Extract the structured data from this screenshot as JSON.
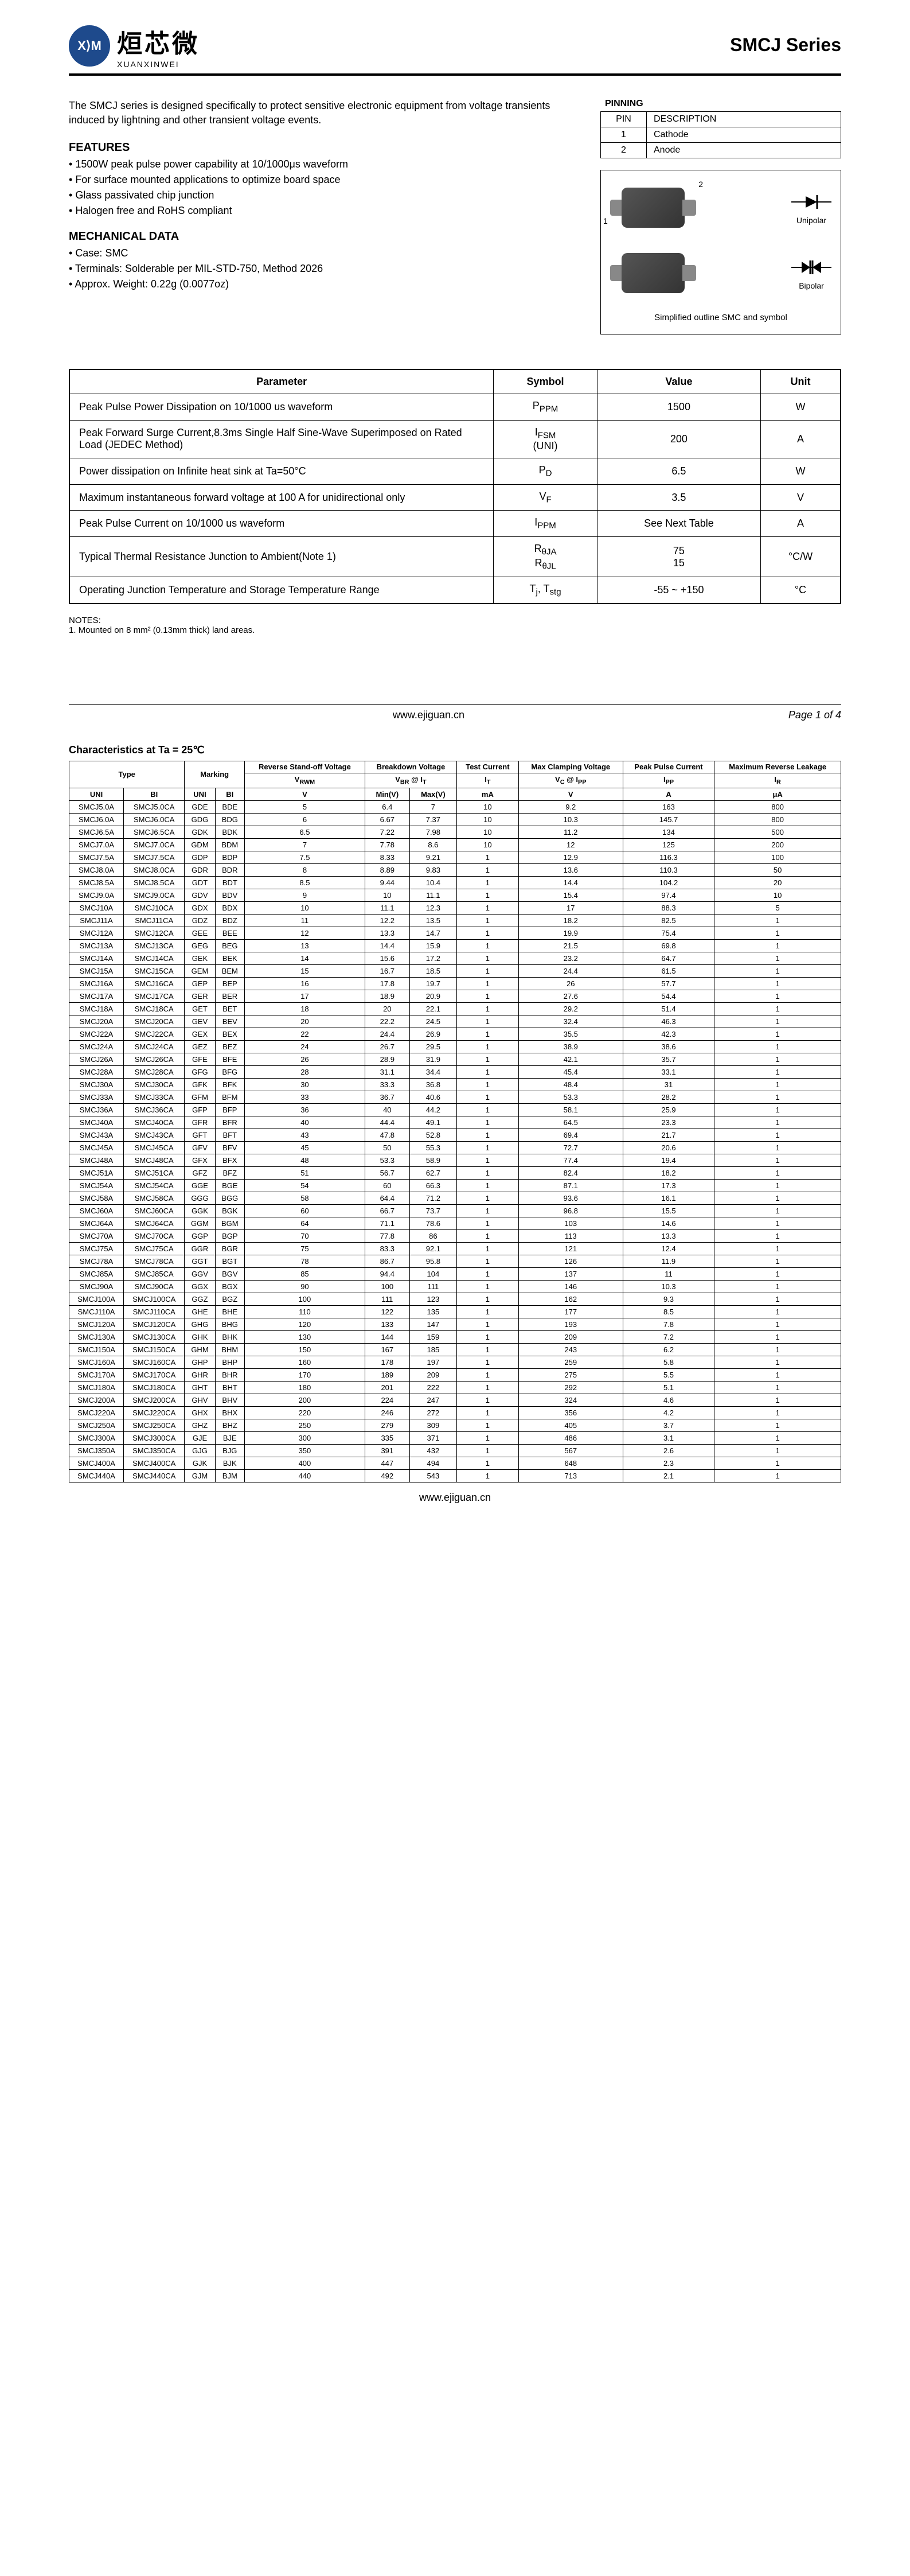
{
  "header": {
    "logo_mark": "X⟩M",
    "logo_cn": "烜芯微",
    "logo_en": "XUANXINWEI",
    "series": "SMCJ Series"
  },
  "intro": "The SMCJ series is designed specifically to protect sensitive electronic equipment from voltage transients induced by lightning and other transient voltage events.",
  "features_label": "FEATURES",
  "features": [
    "1500W peak pulse power capability at 10/1000μs waveform",
    "For surface mounted applications to optimize board space",
    "Glass passivated chip junction",
    "Halogen free and RoHS compliant"
  ],
  "mech_label": "MECHANICAL DATA",
  "mech": [
    "Case: SMC",
    "Terminals: Solderable per MIL-STD-750, Method 2026",
    "Approx. Weight:  0.22g (0.0077oz)"
  ],
  "pinning": {
    "label": "PINNING",
    "col1": "PIN",
    "col2": "DESCRIPTION",
    "rows": [
      [
        "1",
        "Cathode"
      ],
      [
        "2",
        "Anode"
      ]
    ]
  },
  "outline": {
    "pin1": "1",
    "pin2": "2",
    "unipolar": "Unipolar",
    "bipolar": "Bipolar",
    "caption": "Simplified outline SMC and symbol"
  },
  "param_headers": [
    "Parameter",
    "Symbol",
    "Value",
    "Unit"
  ],
  "params": [
    {
      "p": "Peak Pulse Power Dissipation on 10/1000 us waveform",
      "s": "P<sub>PPM</sub>",
      "v": "1500",
      "u": "W"
    },
    {
      "p": "Peak Forward Surge Current,8.3ms Single Half Sine-Wave Superimposed on Rated Load (JEDEC Method)",
      "s": "I<sub>FSM</sub><br>(UNI)",
      "v": "200",
      "u": "A"
    },
    {
      "p": "Power dissipation on Infinite heat sink at Ta=50°C",
      "s": "P<sub>D</sub>",
      "v": "6.5",
      "u": "W"
    },
    {
      "p": "Maximum instantaneous forward voltage at 100 A for unidirectional only",
      "s": "V<sub>F</sub>",
      "v": "3.5",
      "u": "V"
    },
    {
      "p": "Peak Pulse Current on 10/1000 us waveform",
      "s": "I<sub>PPM</sub>",
      "v": "See Next Table",
      "u": "A"
    },
    {
      "p": "Typical Thermal Resistance Junction to Ambient(Note 1)",
      "s": "R<sub>θJA</sub><br>R<sub>θJL</sub>",
      "v": "75<br>15",
      "u": "°C/W"
    },
    {
      "p": "Operating Junction Temperature and Storage Temperature Range",
      "s": "T<sub>j</sub>, T<sub>stg</sub>",
      "v": "-55 ~ +150",
      "u": "°C"
    }
  ],
  "notes_label": "NOTES:",
  "notes": "1. Mounted on 8 mm² (0.13mm  thick) land areas.",
  "footer": {
    "url": "www.ejiguan.cn",
    "page": "Page  1 of 4"
  },
  "char_title": "Characteristics at Ta = 25℃",
  "char_headers": {
    "type": "Type",
    "marking": "Marking",
    "rsov": "Reverse Stand-off Voltage",
    "bv": "Breakdown Voltage",
    "tc": "Test Current",
    "mcv": "Max Clamping Voltage",
    "ppc": "Peak Pulse Current",
    "mrl": "Maximum Reverse Leakage",
    "vrwm": "V<sub>RWM</sub>",
    "vbrit": "V<sub>BR</sub> @ I<sub>T</sub>",
    "it": "I<sub>T</sub>",
    "vcipp": "V<sub>C</sub> @ I<sub>PP</sub>",
    "ipp": "I<sub>PP</sub>",
    "ir": "I<sub>R</sub>",
    "uni": "UNI",
    "bi": "BI",
    "v": "V",
    "minv": "Min(V)",
    "maxv": "Max(V)",
    "ma": "mA",
    "a": "A",
    "ua": "μA"
  },
  "char_rows": [
    [
      "SMCJ5.0A",
      "SMCJ5.0CA",
      "GDE",
      "BDE",
      "5",
      "6.4",
      "7",
      "10",
      "9.2",
      "163",
      "800"
    ],
    [
      "SMCJ6.0A",
      "SMCJ6.0CA",
      "GDG",
      "BDG",
      "6",
      "6.67",
      "7.37",
      "10",
      "10.3",
      "145.7",
      "800"
    ],
    [
      "SMCJ6.5A",
      "SMCJ6.5CA",
      "GDK",
      "BDK",
      "6.5",
      "7.22",
      "7.98",
      "10",
      "11.2",
      "134",
      "500"
    ],
    [
      "SMCJ7.0A",
      "SMCJ7.0CA",
      "GDM",
      "BDM",
      "7",
      "7.78",
      "8.6",
      "10",
      "12",
      "125",
      "200"
    ],
    [
      "SMCJ7.5A",
      "SMCJ7.5CA",
      "GDP",
      "BDP",
      "7.5",
      "8.33",
      "9.21",
      "1",
      "12.9",
      "116.3",
      "100"
    ],
    [
      "SMCJ8.0A",
      "SMCJ8.0CA",
      "GDR",
      "BDR",
      "8",
      "8.89",
      "9.83",
      "1",
      "13.6",
      "110.3",
      "50"
    ],
    [
      "SMCJ8.5A",
      "SMCJ8.5CA",
      "GDT",
      "BDT",
      "8.5",
      "9.44",
      "10.4",
      "1",
      "14.4",
      "104.2",
      "20"
    ],
    [
      "SMCJ9.0A",
      "SMCJ9.0CA",
      "GDV",
      "BDV",
      "9",
      "10",
      "11.1",
      "1",
      "15.4",
      "97.4",
      "10"
    ],
    [
      "SMCJ10A",
      "SMCJ10CA",
      "GDX",
      "BDX",
      "10",
      "11.1",
      "12.3",
      "1",
      "17",
      "88.3",
      "5"
    ],
    [
      "SMCJ11A",
      "SMCJ11CA",
      "GDZ",
      "BDZ",
      "11",
      "12.2",
      "13.5",
      "1",
      "18.2",
      "82.5",
      "1"
    ],
    [
      "SMCJ12A",
      "SMCJ12CA",
      "GEE",
      "BEE",
      "12",
      "13.3",
      "14.7",
      "1",
      "19.9",
      "75.4",
      "1"
    ],
    [
      "SMCJ13A",
      "SMCJ13CA",
      "GEG",
      "BEG",
      "13",
      "14.4",
      "15.9",
      "1",
      "21.5",
      "69.8",
      "1"
    ],
    [
      "SMCJ14A",
      "SMCJ14CA",
      "GEK",
      "BEK",
      "14",
      "15.6",
      "17.2",
      "1",
      "23.2",
      "64.7",
      "1"
    ],
    [
      "SMCJ15A",
      "SMCJ15CA",
      "GEM",
      "BEM",
      "15",
      "16.7",
      "18.5",
      "1",
      "24.4",
      "61.5",
      "1"
    ],
    [
      "SMCJ16A",
      "SMCJ16CA",
      "GEP",
      "BEP",
      "16",
      "17.8",
      "19.7",
      "1",
      "26",
      "57.7",
      "1"
    ],
    [
      "SMCJ17A",
      "SMCJ17CA",
      "GER",
      "BER",
      "17",
      "18.9",
      "20.9",
      "1",
      "27.6",
      "54.4",
      "1"
    ],
    [
      "SMCJ18A",
      "SMCJ18CA",
      "GET",
      "BET",
      "18",
      "20",
      "22.1",
      "1",
      "29.2",
      "51.4",
      "1"
    ],
    [
      "SMCJ20A",
      "SMCJ20CA",
      "GEV",
      "BEV",
      "20",
      "22.2",
      "24.5",
      "1",
      "32.4",
      "46.3",
      "1"
    ],
    [
      "SMCJ22A",
      "SMCJ22CA",
      "GEX",
      "BEX",
      "22",
      "24.4",
      "26.9",
      "1",
      "35.5",
      "42.3",
      "1"
    ],
    [
      "SMCJ24A",
      "SMCJ24CA",
      "GEZ",
      "BEZ",
      "24",
      "26.7",
      "29.5",
      "1",
      "38.9",
      "38.6",
      "1"
    ],
    [
      "SMCJ26A",
      "SMCJ26CA",
      "GFE",
      "BFE",
      "26",
      "28.9",
      "31.9",
      "1",
      "42.1",
      "35.7",
      "1"
    ],
    [
      "SMCJ28A",
      "SMCJ28CA",
      "GFG",
      "BFG",
      "28",
      "31.1",
      "34.4",
      "1",
      "45.4",
      "33.1",
      "1"
    ],
    [
      "SMCJ30A",
      "SMCJ30CA",
      "GFK",
      "BFK",
      "30",
      "33.3",
      "36.8",
      "1",
      "48.4",
      "31",
      "1"
    ],
    [
      "SMCJ33A",
      "SMCJ33CA",
      "GFM",
      "BFM",
      "33",
      "36.7",
      "40.6",
      "1",
      "53.3",
      "28.2",
      "1"
    ],
    [
      "SMCJ36A",
      "SMCJ36CA",
      "GFP",
      "BFP",
      "36",
      "40",
      "44.2",
      "1",
      "58.1",
      "25.9",
      "1"
    ],
    [
      "SMCJ40A",
      "SMCJ40CA",
      "GFR",
      "BFR",
      "40",
      "44.4",
      "49.1",
      "1",
      "64.5",
      "23.3",
      "1"
    ],
    [
      "SMCJ43A",
      "SMCJ43CA",
      "GFT",
      "BFT",
      "43",
      "47.8",
      "52.8",
      "1",
      "69.4",
      "21.7",
      "1"
    ],
    [
      "SMCJ45A",
      "SMCJ45CA",
      "GFV",
      "BFV",
      "45",
      "50",
      "55.3",
      "1",
      "72.7",
      "20.6",
      "1"
    ],
    [
      "SMCJ48A",
      "SMCJ48CA",
      "GFX",
      "BFX",
      "48",
      "53.3",
      "58.9",
      "1",
      "77.4",
      "19.4",
      "1"
    ],
    [
      "SMCJ51A",
      "SMCJ51CA",
      "GFZ",
      "BFZ",
      "51",
      "56.7",
      "62.7",
      "1",
      "82.4",
      "18.2",
      "1"
    ],
    [
      "SMCJ54A",
      "SMCJ54CA",
      "GGE",
      "BGE",
      "54",
      "60",
      "66.3",
      "1",
      "87.1",
      "17.3",
      "1"
    ],
    [
      "SMCJ58A",
      "SMCJ58CA",
      "GGG",
      "BGG",
      "58",
      "64.4",
      "71.2",
      "1",
      "93.6",
      "16.1",
      "1"
    ],
    [
      "SMCJ60A",
      "SMCJ60CA",
      "GGK",
      "BGK",
      "60",
      "66.7",
      "73.7",
      "1",
      "96.8",
      "15.5",
      "1"
    ],
    [
      "SMCJ64A",
      "SMCJ64CA",
      "GGM",
      "BGM",
      "64",
      "71.1",
      "78.6",
      "1",
      "103",
      "14.6",
      "1"
    ],
    [
      "SMCJ70A",
      "SMCJ70CA",
      "GGP",
      "BGP",
      "70",
      "77.8",
      "86",
      "1",
      "113",
      "13.3",
      "1"
    ],
    [
      "SMCJ75A",
      "SMCJ75CA",
      "GGR",
      "BGR",
      "75",
      "83.3",
      "92.1",
      "1",
      "121",
      "12.4",
      "1"
    ],
    [
      "SMCJ78A",
      "SMCJ78CA",
      "GGT",
      "BGT",
      "78",
      "86.7",
      "95.8",
      "1",
      "126",
      "11.9",
      "1"
    ],
    [
      "SMCJ85A",
      "SMCJ85CA",
      "GGV",
      "BGV",
      "85",
      "94.4",
      "104",
      "1",
      "137",
      "11",
      "1"
    ],
    [
      "SMCJ90A",
      "SMCJ90CA",
      "GGX",
      "BGX",
      "90",
      "100",
      "111",
      "1",
      "146",
      "10.3",
      "1"
    ],
    [
      "SMCJ100A",
      "SMCJ100CA",
      "GGZ",
      "BGZ",
      "100",
      "111",
      "123",
      "1",
      "162",
      "9.3",
      "1"
    ],
    [
      "SMCJ110A",
      "SMCJ110CA",
      "GHE",
      "BHE",
      "110",
      "122",
      "135",
      "1",
      "177",
      "8.5",
      "1"
    ],
    [
      "SMCJ120A",
      "SMCJ120CA",
      "GHG",
      "BHG",
      "120",
      "133",
      "147",
      "1",
      "193",
      "7.8",
      "1"
    ],
    [
      "SMCJ130A",
      "SMCJ130CA",
      "GHK",
      "BHK",
      "130",
      "144",
      "159",
      "1",
      "209",
      "7.2",
      "1"
    ],
    [
      "SMCJ150A",
      "SMCJ150CA",
      "GHM",
      "BHM",
      "150",
      "167",
      "185",
      "1",
      "243",
      "6.2",
      "1"
    ],
    [
      "SMCJ160A",
      "SMCJ160CA",
      "GHP",
      "BHP",
      "160",
      "178",
      "197",
      "1",
      "259",
      "5.8",
      "1"
    ],
    [
      "SMCJ170A",
      "SMCJ170CA",
      "GHR",
      "BHR",
      "170",
      "189",
      "209",
      "1",
      "275",
      "5.5",
      "1"
    ],
    [
      "SMCJ180A",
      "SMCJ180CA",
      "GHT",
      "BHT",
      "180",
      "201",
      "222",
      "1",
      "292",
      "5.1",
      "1"
    ],
    [
      "SMCJ200A",
      "SMCJ200CA",
      "GHV",
      "BHV",
      "200",
      "224",
      "247",
      "1",
      "324",
      "4.6",
      "1"
    ],
    [
      "SMCJ220A",
      "SMCJ220CA",
      "GHX",
      "BHX",
      "220",
      "246",
      "272",
      "1",
      "356",
      "4.2",
      "1"
    ],
    [
      "SMCJ250A",
      "SMCJ250CA",
      "GHZ",
      "BHZ",
      "250",
      "279",
      "309",
      "1",
      "405",
      "3.7",
      "1"
    ],
    [
      "SMCJ300A",
      "SMCJ300CA",
      "GJE",
      "BJE",
      "300",
      "335",
      "371",
      "1",
      "486",
      "3.1",
      "1"
    ],
    [
      "SMCJ350A",
      "SMCJ350CA",
      "GJG",
      "BJG",
      "350",
      "391",
      "432",
      "1",
      "567",
      "2.6",
      "1"
    ],
    [
      "SMCJ400A",
      "SMCJ400CA",
      "GJK",
      "BJK",
      "400",
      "447",
      "494",
      "1",
      "648",
      "2.3",
      "1"
    ],
    [
      "SMCJ440A",
      "SMCJ440CA",
      "GJM",
      "BJM",
      "440",
      "492",
      "543",
      "1",
      "713",
      "2.1",
      "1"
    ]
  ]
}
